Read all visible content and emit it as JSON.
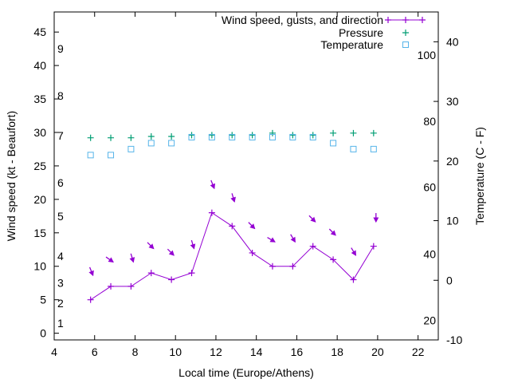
{
  "chart_data": {
    "type": "line",
    "xlabel": "Local time (Europe/Athens)",
    "ylabel": "Wind speed (kt - Beaufort)",
    "y2label": "Temperature (C - F)",
    "xlim": [
      4,
      23
    ],
    "ylim": [
      -1,
      48
    ],
    "y2lim": [
      -10,
      45
    ],
    "x_ticks": [
      4,
      6,
      8,
      10,
      12,
      14,
      16,
      18,
      20,
      22
    ],
    "y_ticks": [
      0,
      5,
      10,
      15,
      20,
      25,
      30,
      35,
      40,
      45
    ],
    "y2_ticks": [
      -10,
      0,
      10,
      20,
      30,
      40
    ],
    "beaufort_labels": [
      {
        "text": "1",
        "kt": 1.5
      },
      {
        "text": "2",
        "kt": 4.5
      },
      {
        "text": "3",
        "kt": 7.5
      },
      {
        "text": "4",
        "kt": 11.5
      },
      {
        "text": "5",
        "kt": 17.5
      },
      {
        "text": "6",
        "kt": 22.5
      },
      {
        "text": "7",
        "kt": 29.5
      },
      {
        "text": "8",
        "kt": 35.5
      },
      {
        "text": "9",
        "kt": 42.5
      }
    ],
    "fahrenheit_labels": [
      {
        "text": "20",
        "celsius": -6.7
      },
      {
        "text": "40",
        "celsius": 4.4
      },
      {
        "text": "60",
        "celsius": 15.6
      },
      {
        "text": "80",
        "celsius": 26.7
      },
      {
        "text": "100",
        "celsius": 37.8
      }
    ],
    "legend_position": "top-right",
    "series": [
      {
        "name": "Wind speed, gusts, and direction",
        "color": "#9400d3",
        "style": "line-points",
        "x": [
          5.8,
          6.8,
          7.8,
          8.8,
          9.8,
          10.8,
          11.8,
          12.8,
          13.8,
          14.8,
          15.8,
          16.8,
          17.8,
          18.8,
          19.8
        ],
        "y": [
          5,
          7,
          7,
          9,
          8,
          9,
          18,
          16,
          12,
          10,
          10,
          13,
          11,
          8,
          13
        ],
        "gusts": [
          9,
          11,
          11,
          13,
          12,
          13,
          22,
          20,
          16,
          14,
          14,
          17,
          15,
          12,
          17
        ],
        "direction_arrows": [
          {
            "dx": 0.4,
            "dy": -1
          },
          {
            "dx": 1,
            "dy": -0.7
          },
          {
            "dx": 0.3,
            "dy": -1
          },
          {
            "dx": 1,
            "dy": -1
          },
          {
            "dx": 1,
            "dy": -1
          },
          {
            "dx": 0.3,
            "dy": -1
          },
          {
            "dx": 0.4,
            "dy": -1
          },
          {
            "dx": 0.3,
            "dy": -1
          },
          {
            "dx": 1,
            "dy": -1
          },
          {
            "dx": 1,
            "dy": -0.6
          },
          {
            "dx": 0.6,
            "dy": -1
          },
          {
            "dx": 1,
            "dy": -1
          },
          {
            "dx": 1,
            "dy": -1
          },
          {
            "dx": 0.6,
            "dy": -1
          },
          {
            "dx": 0,
            "dy": -1
          }
        ]
      },
      {
        "name": "Pressure",
        "color": "#009e73",
        "style": "points-plus",
        "x": [
          5.8,
          6.8,
          7.8,
          8.8,
          9.8,
          10.8,
          11.8,
          12.8,
          13.8,
          14.8,
          15.8,
          16.8,
          17.8,
          18.8,
          19.8
        ],
        "y": [
          29.2,
          29.2,
          29.2,
          29.4,
          29.4,
          29.6,
          29.6,
          29.6,
          29.6,
          29.9,
          29.6,
          29.6,
          29.9,
          29.9,
          29.9
        ]
      },
      {
        "name": "Temperature",
        "color": "#56b4e9",
        "style": "points-square",
        "axis": "y2",
        "x": [
          5.8,
          6.8,
          7.8,
          8.8,
          9.8,
          10.8,
          11.8,
          12.8,
          13.8,
          14.8,
          15.8,
          16.8,
          17.8,
          18.8,
          19.8
        ],
        "y": [
          21,
          21,
          22,
          23,
          23,
          24,
          24,
          24,
          24,
          24,
          24,
          24,
          23,
          22,
          22
        ]
      }
    ]
  }
}
